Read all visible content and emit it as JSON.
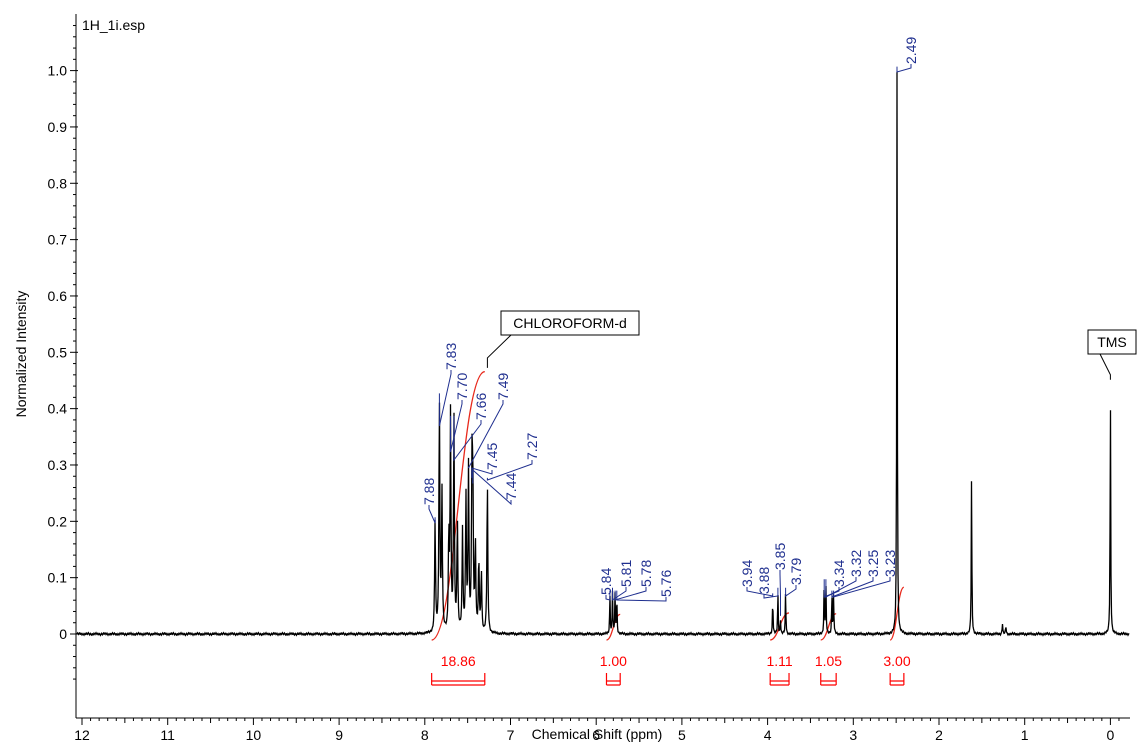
{
  "chart_data": {
    "type": "line",
    "title": "1H_1i.esp",
    "xlabel": "Chemical Shift (ppm)",
    "ylabel": "Normalized Intensity",
    "xlim": [
      12.2,
      -0.1
    ],
    "ylim": [
      -0.1,
      1.1
    ],
    "x_reversed": true,
    "x_ticks": [
      12,
      11,
      10,
      9,
      8,
      7,
      6,
      5,
      4,
      3,
      2,
      1,
      0
    ],
    "y_ticks": [
      0,
      0.1,
      0.2,
      0.3,
      0.4,
      0.5,
      0.6,
      0.7,
      0.8,
      0.9,
      1.0
    ],
    "y_tick_labels": [
      "0",
      "0.1",
      "0.2",
      "0.3",
      "0.4",
      "0.5",
      "0.6",
      "0.7",
      "0.8",
      "0.9",
      "1.0"
    ],
    "grid": false,
    "peaks": [
      {
        "shift": 7.88,
        "height": 0.2
      },
      {
        "shift": 7.83,
        "height": 0.42
      },
      {
        "shift": 7.8,
        "height": 0.25
      },
      {
        "shift": 7.72,
        "height": 0.17
      },
      {
        "shift": 7.7,
        "height": 0.38
      },
      {
        "shift": 7.66,
        "height": 0.38
      },
      {
        "shift": 7.62,
        "height": 0.2
      },
      {
        "shift": 7.56,
        "height": 0.18
      },
      {
        "shift": 7.52,
        "height": 0.24
      },
      {
        "shift": 7.49,
        "height": 0.29
      },
      {
        "shift": 7.45,
        "height": 0.27
      },
      {
        "shift": 7.44,
        "height": 0.26
      },
      {
        "shift": 7.41,
        "height": 0.16
      },
      {
        "shift": 7.37,
        "height": 0.13
      },
      {
        "shift": 7.34,
        "height": 0.11
      },
      {
        "shift": 7.27,
        "height": 0.27
      },
      {
        "shift": 5.84,
        "height": 0.07
      },
      {
        "shift": 5.81,
        "height": 0.075
      },
      {
        "shift": 5.78,
        "height": 0.07
      },
      {
        "shift": 5.76,
        "height": 0.07
      },
      {
        "shift": 3.94,
        "height": 0.065
      },
      {
        "shift": 3.88,
        "height": 0.075
      },
      {
        "shift": 3.85,
        "height": 0.025
      },
      {
        "shift": 3.79,
        "height": 0.075
      },
      {
        "shift": 3.34,
        "height": 0.09
      },
      {
        "shift": 3.32,
        "height": 0.09
      },
      {
        "shift": 3.25,
        "height": 0.07
      },
      {
        "shift": 3.23,
        "height": 0.07
      },
      {
        "shift": 2.49,
        "height": 1.0
      },
      {
        "shift": 1.62,
        "height": 0.28
      },
      {
        "shift": 1.26,
        "height": 0.02
      },
      {
        "shift": 1.22,
        "height": 0.015
      },
      {
        "shift": 0.0,
        "height": 0.43
      }
    ],
    "peak_labels": [
      {
        "text": "7.88",
        "shift": 7.88
      },
      {
        "text": "7.83",
        "shift": 7.83
      },
      {
        "text": "7.70",
        "shift": 7.7
      },
      {
        "text": "7.66",
        "shift": 7.66
      },
      {
        "text": "7.45",
        "shift": 7.45
      },
      {
        "text": "7.49",
        "shift": 7.49
      },
      {
        "text": "7.44",
        "shift": 7.44
      },
      {
        "text": "7.27",
        "shift": 7.27
      },
      {
        "text": "5.84",
        "shift": 5.84
      },
      {
        "text": "5.81",
        "shift": 5.81
      },
      {
        "text": "5.78",
        "shift": 5.78
      },
      {
        "text": "5.76",
        "shift": 5.76
      },
      {
        "text": "3.94",
        "shift": 3.94
      },
      {
        "text": "3.88",
        "shift": 3.88
      },
      {
        "text": "3.85",
        "shift": 3.85
      },
      {
        "text": "3.79",
        "shift": 3.79
      },
      {
        "text": "3.34",
        "shift": 3.34
      },
      {
        "text": "3.32",
        "shift": 3.32
      },
      {
        "text": "3.25",
        "shift": 3.25
      },
      {
        "text": "3.23",
        "shift": 3.23
      },
      {
        "text": "2.49",
        "shift": 2.49
      }
    ],
    "integrals": [
      {
        "value": "18.86",
        "from": 7.92,
        "to": 7.3
      },
      {
        "value": "1.00",
        "from": 5.88,
        "to": 5.72
      },
      {
        "value": "1.11",
        "from": 3.97,
        "to": 3.75
      },
      {
        "value": "1.05",
        "from": 3.38,
        "to": 3.2
      },
      {
        "value": "3.00",
        "from": 2.57,
        "to": 2.41
      }
    ],
    "annotations": [
      {
        "text": "CHLOROFORM-d",
        "shift": 7.27,
        "height": 0.49
      },
      {
        "text": "TMS",
        "shift": 0.0,
        "height": 0.46
      }
    ],
    "colors": {
      "spectrum": "#000000",
      "peak_label": "#1f2f8f",
      "integral": "#ff0000",
      "integral_curve": "#e8291c"
    }
  }
}
